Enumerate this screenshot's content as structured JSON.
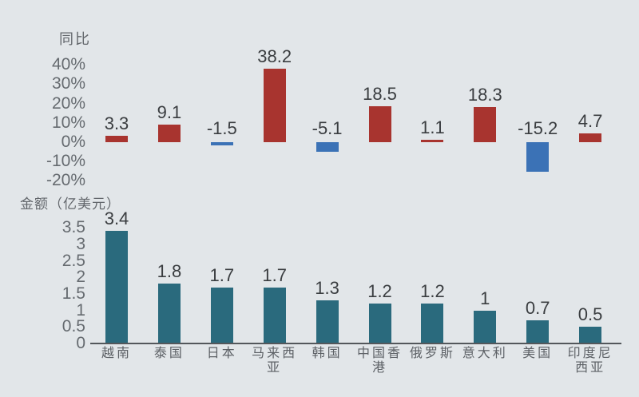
{
  "page": {
    "background_color": "#e2e6e9"
  },
  "colors": {
    "positive_bar": "#a8342f",
    "negative_bar": "#3b72b6",
    "amount_bar": "#2a6a7d",
    "tick_text": "#666b70",
    "value_text": "#3a3d40",
    "category_text": "#5d6166",
    "axis_line": "#53575b"
  },
  "chart_data": [
    {
      "type": "bar",
      "title": "同比",
      "categories": [
        "越南",
        "泰国",
        "日本",
        "马来西亚",
        "韩国",
        "中国香港",
        "俄罗斯",
        "意大利",
        "美国",
        "印度尼西亚"
      ],
      "values": [
        3.3,
        9.1,
        -1.5,
        38.2,
        -5.1,
        18.5,
        1.1,
        18.3,
        -15.2,
        4.7
      ],
      "value_labels": [
        "3.3",
        "9.1",
        "-1.5",
        "38.2",
        "-5.1",
        "18.5",
        "1.1",
        "18.3",
        "-15.2",
        "4.7"
      ],
      "yticks": [
        "40%",
        "30%",
        "20%",
        "10%",
        "0%",
        "-10%",
        "-20%"
      ],
      "ytick_values": [
        40,
        30,
        20,
        10,
        0,
        -10,
        -20
      ],
      "ylim": [
        -20,
        40
      ],
      "ylabel": "同比 (%)",
      "grid": false,
      "show_category_labels": false,
      "positive_color": "#a8342f",
      "negative_color": "#3b72b6",
      "legend_position": "none"
    },
    {
      "type": "bar",
      "title": "金额（亿美元）",
      "categories": [
        "越南",
        "泰国",
        "日本",
        "马来西亚",
        "韩国",
        "中国香港",
        "俄罗斯",
        "意大利",
        "美国",
        "印度尼西亚"
      ],
      "values": [
        3.4,
        1.8,
        1.7,
        1.7,
        1.3,
        1.2,
        1.2,
        1,
        0.7,
        0.5
      ],
      "value_labels": [
        "3.4",
        "1.8",
        "1.7",
        "1.7",
        "1.3",
        "1.2",
        "1.2",
        "1",
        "0.7",
        "0.5"
      ],
      "yticks": [
        "3.5",
        "3",
        "2.5",
        "2",
        "1.5",
        "1",
        "0.5",
        "0"
      ],
      "ytick_values": [
        3.5,
        3,
        2.5,
        2,
        1.5,
        1,
        0.5,
        0
      ],
      "ylim": [
        0,
        3.5
      ],
      "ylabel": "金额（亿美元）",
      "grid": false,
      "show_category_labels": true,
      "bar_color": "#2a6a7d",
      "legend_position": "none"
    }
  ]
}
